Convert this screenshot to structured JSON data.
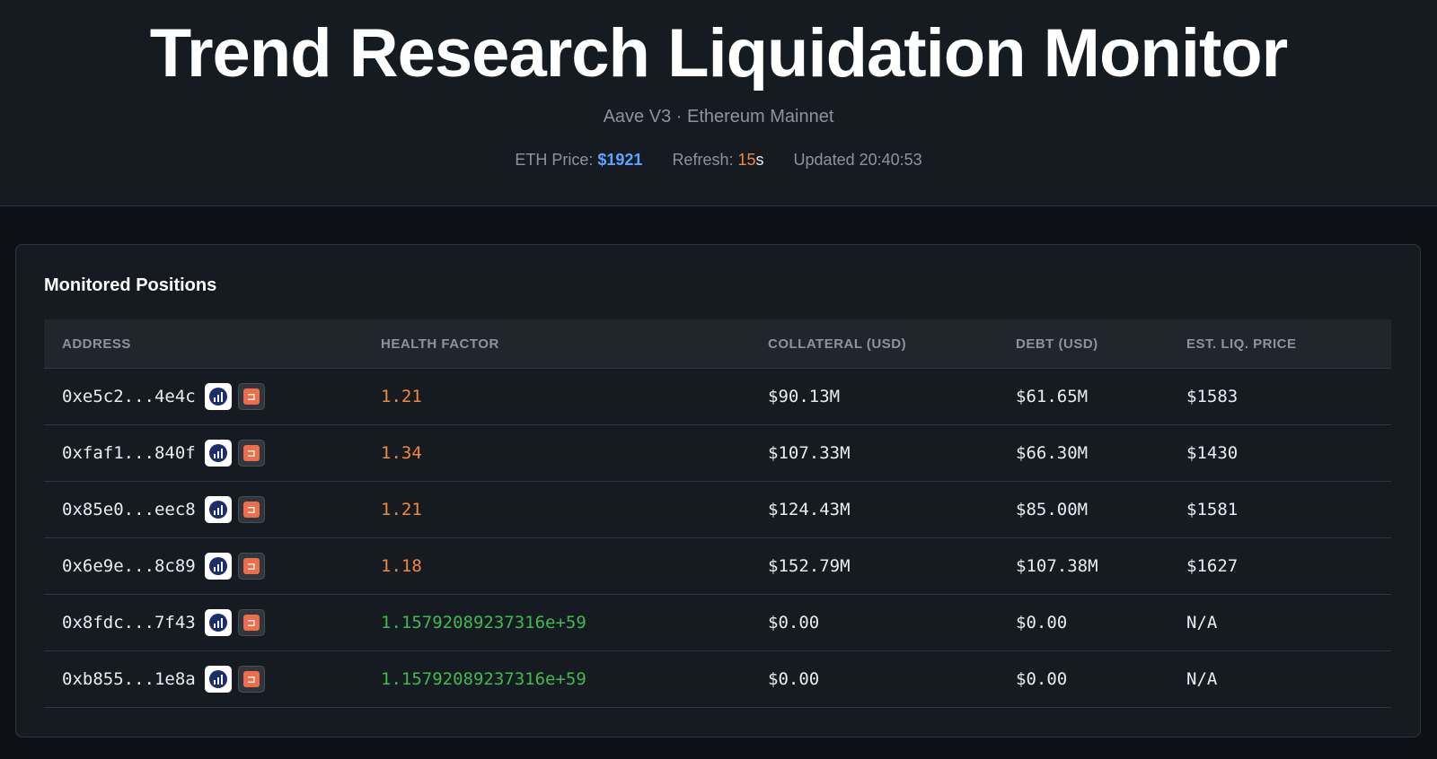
{
  "header": {
    "title": "Trend Research Liquidation Monitor",
    "subtitle": "Aave V3 · Ethereum Mainnet",
    "eth_price_label": "ETH Price:",
    "eth_price_value": "$1921",
    "refresh_label": "Refresh:",
    "refresh_count": "15",
    "refresh_unit": "s",
    "updated": "Updated 20:40:53"
  },
  "panel": {
    "title": "Monitored Positions",
    "columns": [
      "ADDRESS",
      "HEALTH FACTOR",
      "COLLATERAL (USD)",
      "DEBT (USD)",
      "EST. LIQ. PRICE"
    ],
    "rows": [
      {
        "address": "0xe5c2...4e4c",
        "health": "1.21",
        "collateral": "$90.13M",
        "debt": "$61.65M",
        "liq_price": "$1583"
      },
      {
        "address": "0xfaf1...840f",
        "health": "1.34",
        "collateral": "$107.33M",
        "debt": "$66.30M",
        "liq_price": "$1430"
      },
      {
        "address": "0x85e0...eec8",
        "health": "1.21",
        "collateral": "$124.43M",
        "debt": "$85.00M",
        "liq_price": "$1581"
      },
      {
        "address": "0x6e9e...8c89",
        "health": "1.18",
        "collateral": "$152.79M",
        "debt": "$107.38M",
        "liq_price": "$1627"
      },
      {
        "address": "0x8fdc...7f43",
        "health": "1.15792089237316e+59",
        "collateral": "$0.00",
        "debt": "$0.00",
        "liq_price": "N/A"
      },
      {
        "address": "0xb855...1e8a",
        "health": "1.15792089237316e+59",
        "collateral": "$0.00",
        "debt": "$0.00",
        "liq_price": "N/A"
      }
    ]
  },
  "icons": {
    "debank": "debank-icon",
    "explorer": "etherscan-icon"
  },
  "colors": {
    "accent_blue": "#58a6ff",
    "warning_orange": "#f0883e",
    "safe_green": "#3fb950"
  }
}
